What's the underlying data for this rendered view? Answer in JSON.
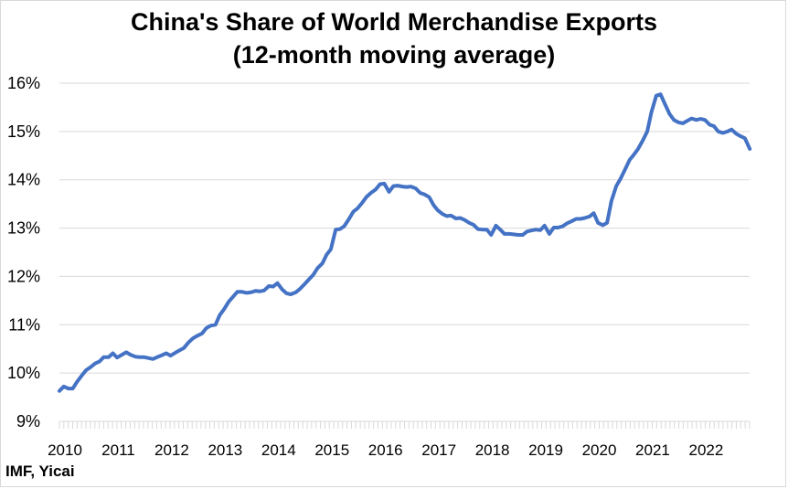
{
  "chart_data": {
    "type": "line",
    "title": [
      "China's Share of World Merchandise Exports",
      "(12-month moving average)"
    ],
    "source": "IMF, Yicai",
    "xlabel": "",
    "ylabel": "",
    "ylim": [
      9,
      16
    ],
    "yticks": [
      "9%",
      "10%",
      "11%",
      "12%",
      "13%",
      "14%",
      "15%",
      "16%"
    ],
    "xticks": [
      "2010",
      "2011",
      "2012",
      "2013",
      "2014",
      "2015",
      "2016",
      "2017",
      "2018",
      "2019",
      "2020",
      "2021",
      "2022"
    ],
    "x_range": [
      2010,
      2022.9167
    ],
    "grid": true,
    "legend": "none",
    "line_color": "#4472c4",
    "series": [
      {
        "values": [
          [
            2010.0,
            9.63
          ],
          [
            2010.08,
            9.72
          ],
          [
            2010.17,
            9.68
          ],
          [
            2010.25,
            9.68
          ],
          [
            2010.33,
            9.82
          ],
          [
            2010.42,
            9.95
          ],
          [
            2010.5,
            10.06
          ],
          [
            2010.58,
            10.12
          ],
          [
            2010.67,
            10.2
          ],
          [
            2010.75,
            10.24
          ],
          [
            2010.83,
            10.33
          ],
          [
            2010.92,
            10.33
          ],
          [
            2011.0,
            10.41
          ],
          [
            2011.08,
            10.32
          ],
          [
            2011.17,
            10.38
          ],
          [
            2011.25,
            10.43
          ],
          [
            2011.33,
            10.38
          ],
          [
            2011.42,
            10.34
          ],
          [
            2011.5,
            10.33
          ],
          [
            2011.58,
            10.33
          ],
          [
            2011.67,
            10.31
          ],
          [
            2011.75,
            10.29
          ],
          [
            2011.83,
            10.33
          ],
          [
            2011.92,
            10.37
          ],
          [
            2012.0,
            10.41
          ],
          [
            2012.08,
            10.36
          ],
          [
            2012.17,
            10.42
          ],
          [
            2012.25,
            10.47
          ],
          [
            2012.33,
            10.52
          ],
          [
            2012.42,
            10.64
          ],
          [
            2012.5,
            10.72
          ],
          [
            2012.58,
            10.77
          ],
          [
            2012.67,
            10.82
          ],
          [
            2012.75,
            10.93
          ],
          [
            2012.83,
            10.98
          ],
          [
            2012.92,
            11.0
          ],
          [
            2013.0,
            11.2
          ],
          [
            2013.08,
            11.32
          ],
          [
            2013.17,
            11.48
          ],
          [
            2013.25,
            11.58
          ],
          [
            2013.33,
            11.68
          ],
          [
            2013.42,
            11.68
          ],
          [
            2013.5,
            11.66
          ],
          [
            2013.58,
            11.67
          ],
          [
            2013.67,
            11.7
          ],
          [
            2013.75,
            11.69
          ],
          [
            2013.83,
            11.71
          ],
          [
            2013.92,
            11.8
          ],
          [
            2014.0,
            11.79
          ],
          [
            2014.08,
            11.86
          ],
          [
            2014.17,
            11.73
          ],
          [
            2014.25,
            11.65
          ],
          [
            2014.33,
            11.63
          ],
          [
            2014.42,
            11.67
          ],
          [
            2014.5,
            11.74
          ],
          [
            2014.58,
            11.83
          ],
          [
            2014.67,
            11.94
          ],
          [
            2014.75,
            12.03
          ],
          [
            2014.83,
            12.17
          ],
          [
            2014.92,
            12.27
          ],
          [
            2015.0,
            12.45
          ],
          [
            2015.08,
            12.56
          ],
          [
            2015.17,
            12.97
          ],
          [
            2015.25,
            12.98
          ],
          [
            2015.33,
            13.04
          ],
          [
            2015.42,
            13.19
          ],
          [
            2015.5,
            13.34
          ],
          [
            2015.58,
            13.41
          ],
          [
            2015.67,
            13.53
          ],
          [
            2015.75,
            13.65
          ],
          [
            2015.83,
            13.73
          ],
          [
            2015.92,
            13.8
          ],
          [
            2016.0,
            13.91
          ],
          [
            2016.08,
            13.92
          ],
          [
            2016.17,
            13.75
          ],
          [
            2016.25,
            13.87
          ],
          [
            2016.33,
            13.88
          ],
          [
            2016.42,
            13.86
          ],
          [
            2016.5,
            13.85
          ],
          [
            2016.58,
            13.86
          ],
          [
            2016.67,
            13.82
          ],
          [
            2016.75,
            13.73
          ],
          [
            2016.83,
            13.7
          ],
          [
            2016.92,
            13.64
          ],
          [
            2017.0,
            13.48
          ],
          [
            2017.08,
            13.37
          ],
          [
            2017.17,
            13.29
          ],
          [
            2017.25,
            13.25
          ],
          [
            2017.33,
            13.26
          ],
          [
            2017.42,
            13.2
          ],
          [
            2017.5,
            13.21
          ],
          [
            2017.58,
            13.17
          ],
          [
            2017.67,
            13.11
          ],
          [
            2017.75,
            13.07
          ],
          [
            2017.83,
            12.98
          ],
          [
            2017.92,
            12.97
          ],
          [
            2018.0,
            12.97
          ],
          [
            2018.08,
            12.86
          ],
          [
            2018.17,
            13.05
          ],
          [
            2018.25,
            12.97
          ],
          [
            2018.33,
            12.88
          ],
          [
            2018.42,
            12.88
          ],
          [
            2018.5,
            12.87
          ],
          [
            2018.58,
            12.86
          ],
          [
            2018.67,
            12.86
          ],
          [
            2018.75,
            12.93
          ],
          [
            2018.83,
            12.95
          ],
          [
            2018.92,
            12.97
          ],
          [
            2019.0,
            12.96
          ],
          [
            2019.08,
            13.05
          ],
          [
            2019.17,
            12.88
          ],
          [
            2019.25,
            13.01
          ],
          [
            2019.33,
            13.01
          ],
          [
            2019.42,
            13.04
          ],
          [
            2019.5,
            13.1
          ],
          [
            2019.58,
            13.14
          ],
          [
            2019.67,
            13.19
          ],
          [
            2019.75,
            13.19
          ],
          [
            2019.83,
            13.21
          ],
          [
            2019.92,
            13.24
          ],
          [
            2020.0,
            13.31
          ],
          [
            2020.08,
            13.11
          ],
          [
            2020.17,
            13.06
          ],
          [
            2020.25,
            13.11
          ],
          [
            2020.33,
            13.56
          ],
          [
            2020.42,
            13.87
          ],
          [
            2020.5,
            14.02
          ],
          [
            2020.58,
            14.2
          ],
          [
            2020.67,
            14.41
          ],
          [
            2020.75,
            14.52
          ],
          [
            2020.83,
            14.64
          ],
          [
            2020.92,
            14.82
          ],
          [
            2021.0,
            15.0
          ],
          [
            2021.08,
            15.4
          ],
          [
            2021.17,
            15.74
          ],
          [
            2021.25,
            15.77
          ],
          [
            2021.33,
            15.57
          ],
          [
            2021.42,
            15.36
          ],
          [
            2021.5,
            15.24
          ],
          [
            2021.58,
            15.19
          ],
          [
            2021.67,
            15.17
          ],
          [
            2021.75,
            15.22
          ],
          [
            2021.83,
            15.27
          ],
          [
            2021.92,
            15.24
          ],
          [
            2022.0,
            15.26
          ],
          [
            2022.08,
            15.24
          ],
          [
            2022.17,
            15.14
          ],
          [
            2022.25,
            15.11
          ],
          [
            2022.33,
            15.0
          ],
          [
            2022.42,
            14.97
          ],
          [
            2022.5,
            15.0
          ],
          [
            2022.58,
            15.04
          ],
          [
            2022.67,
            14.95
          ],
          [
            2022.75,
            14.9
          ],
          [
            2022.83,
            14.86
          ],
          [
            2022.92,
            14.64
          ]
        ]
      }
    ]
  }
}
